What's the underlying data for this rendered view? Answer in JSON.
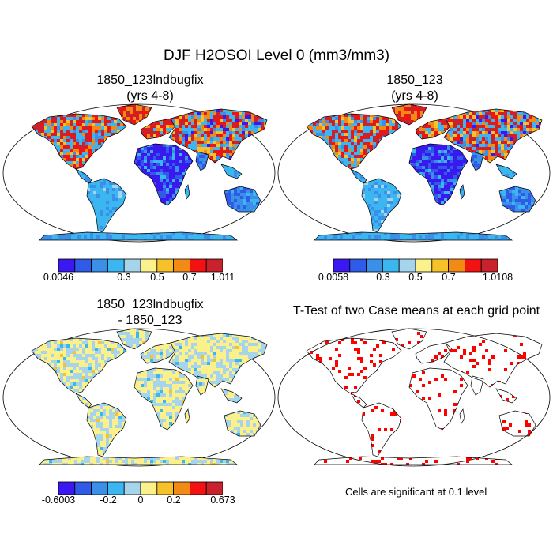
{
  "title": "DJF H2OSOI Level 0 (mm3/mm3)",
  "panels": [
    {
      "id": "p1",
      "title_lines": [
        "1850_123lndbugfix",
        "(yrs 4-8)"
      ],
      "kind": "field"
    },
    {
      "id": "p2",
      "title_lines": [
        "1850_123",
        "(yrs 4-8)"
      ],
      "kind": "field"
    },
    {
      "id": "p3",
      "title_lines": [
        "1850_123lndbugfix",
        "- 1850_123"
      ],
      "kind": "diff"
    },
    {
      "id": "p4",
      "title_lines": [
        "T-Test of two Case means at each grid point"
      ],
      "kind": "ttest"
    }
  ],
  "colors": {
    "field": [
      "#3a18f0",
      "#2f5be8",
      "#3a8fe8",
      "#3cb6f0",
      "#a6d4ec",
      "#fbf08a",
      "#f7c12a",
      "#f48a16",
      "#f31212",
      "#c8232d"
    ],
    "diff": [
      "#3a18f0",
      "#2f5be8",
      "#3a8fe8",
      "#3cb6f0",
      "#a6d4ec",
      "#fbf08a",
      "#f7c12a",
      "#f48a16",
      "#f31212",
      "#c8232d"
    ],
    "sig": "#ff0000",
    "coast": "#000000"
  },
  "colorbars": [
    {
      "id": "cb1",
      "labels": [
        "0.0046",
        "0.3",
        "0.5",
        "0.7",
        "1.011"
      ],
      "label_positions": [
        0,
        2,
        4,
        6,
        9
      ]
    },
    {
      "id": "cb2",
      "labels": [
        "0.0058",
        "0.3",
        "0.5",
        "0.7",
        "1.0108"
      ],
      "label_positions": [
        0,
        2,
        4,
        6,
        9
      ]
    },
    {
      "id": "cb3",
      "labels": [
        "-0.6003",
        "-0.2",
        "0",
        "0.2",
        "0.673"
      ],
      "label_positions": [
        0,
        2,
        4,
        6,
        9
      ]
    }
  ],
  "note": "Cells are significant at 0.1 level",
  "chart_data": [
    {
      "type": "heatmap",
      "title": "1850_123lndbugfix (yrs 4-8)",
      "variable": "H2OSOI Level 0",
      "units": "mm3/mm3",
      "season": "DJF",
      "projection": "Robinson",
      "range": [
        0.0046,
        1.011
      ]
    },
    {
      "type": "heatmap",
      "title": "1850_123 (yrs 4-8)",
      "variable": "H2OSOI Level 0",
      "units": "mm3/mm3",
      "season": "DJF",
      "projection": "Robinson",
      "range": [
        0.0058,
        1.0108
      ]
    },
    {
      "type": "heatmap",
      "title": "1850_123lndbugfix - 1850_123",
      "variable": "H2OSOI Level 0 difference",
      "units": "mm3/mm3",
      "projection": "Robinson",
      "range": [
        -0.6003,
        0.673
      ]
    },
    {
      "type": "heatmap",
      "title": "T-Test of two Case means at each grid point",
      "significance_level": 0.1,
      "projection": "Robinson"
    }
  ]
}
